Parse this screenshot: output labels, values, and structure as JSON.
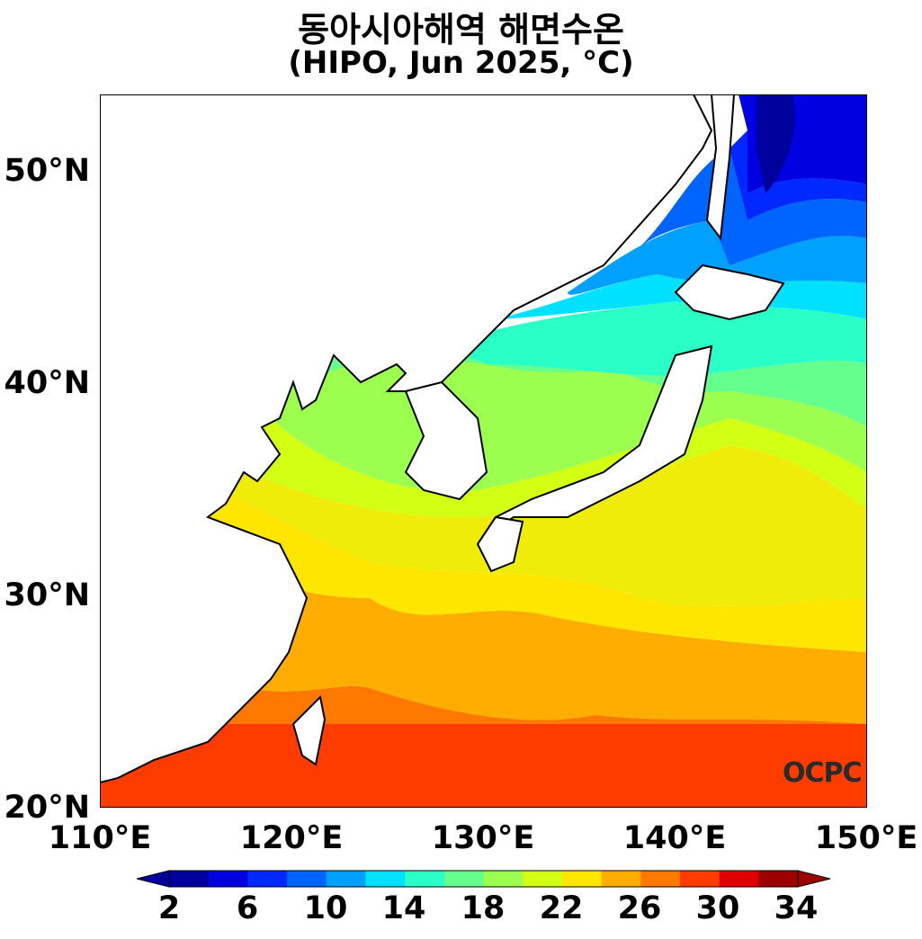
{
  "title": "동아시아해역 해면수온",
  "subtitle": "(HIPO, Jun 2025, °C)",
  "logo": "OCPC",
  "axes": {
    "y_ticks": [
      "20°N",
      "30°N",
      "40°N",
      "50°N"
    ],
    "x_ticks": [
      "110°E",
      "120°E",
      "130°E",
      "140°E",
      "150°E"
    ]
  },
  "colorbar": {
    "labels": [
      "2",
      "6",
      "10",
      "14",
      "18",
      "22",
      "26",
      "30",
      "34"
    ],
    "colors": [
      "#00009c",
      "#0000e0",
      "#0028ff",
      "#0064ff",
      "#00a0ff",
      "#00e0ff",
      "#2affc8",
      "#64ff8c",
      "#9cff50",
      "#d2ff14",
      "#ffe600",
      "#ffae00",
      "#ff7800",
      "#ff3c00",
      "#e00000",
      "#9c0000"
    ]
  },
  "chart_data": {
    "type": "heatmap",
    "title": "동아시아해역 해면수온",
    "subtitle": "(HIPO, Jun 2025, °C)",
    "xlim": [
      110,
      150
    ],
    "ylim": [
      20,
      53.5
    ],
    "x_ticks": [
      110,
      120,
      130,
      140,
      150
    ],
    "y_ticks": [
      20,
      30,
      40,
      50
    ],
    "colorbar_range": [
      2,
      34
    ],
    "colorbar_step": 2,
    "units": "°C"
  }
}
